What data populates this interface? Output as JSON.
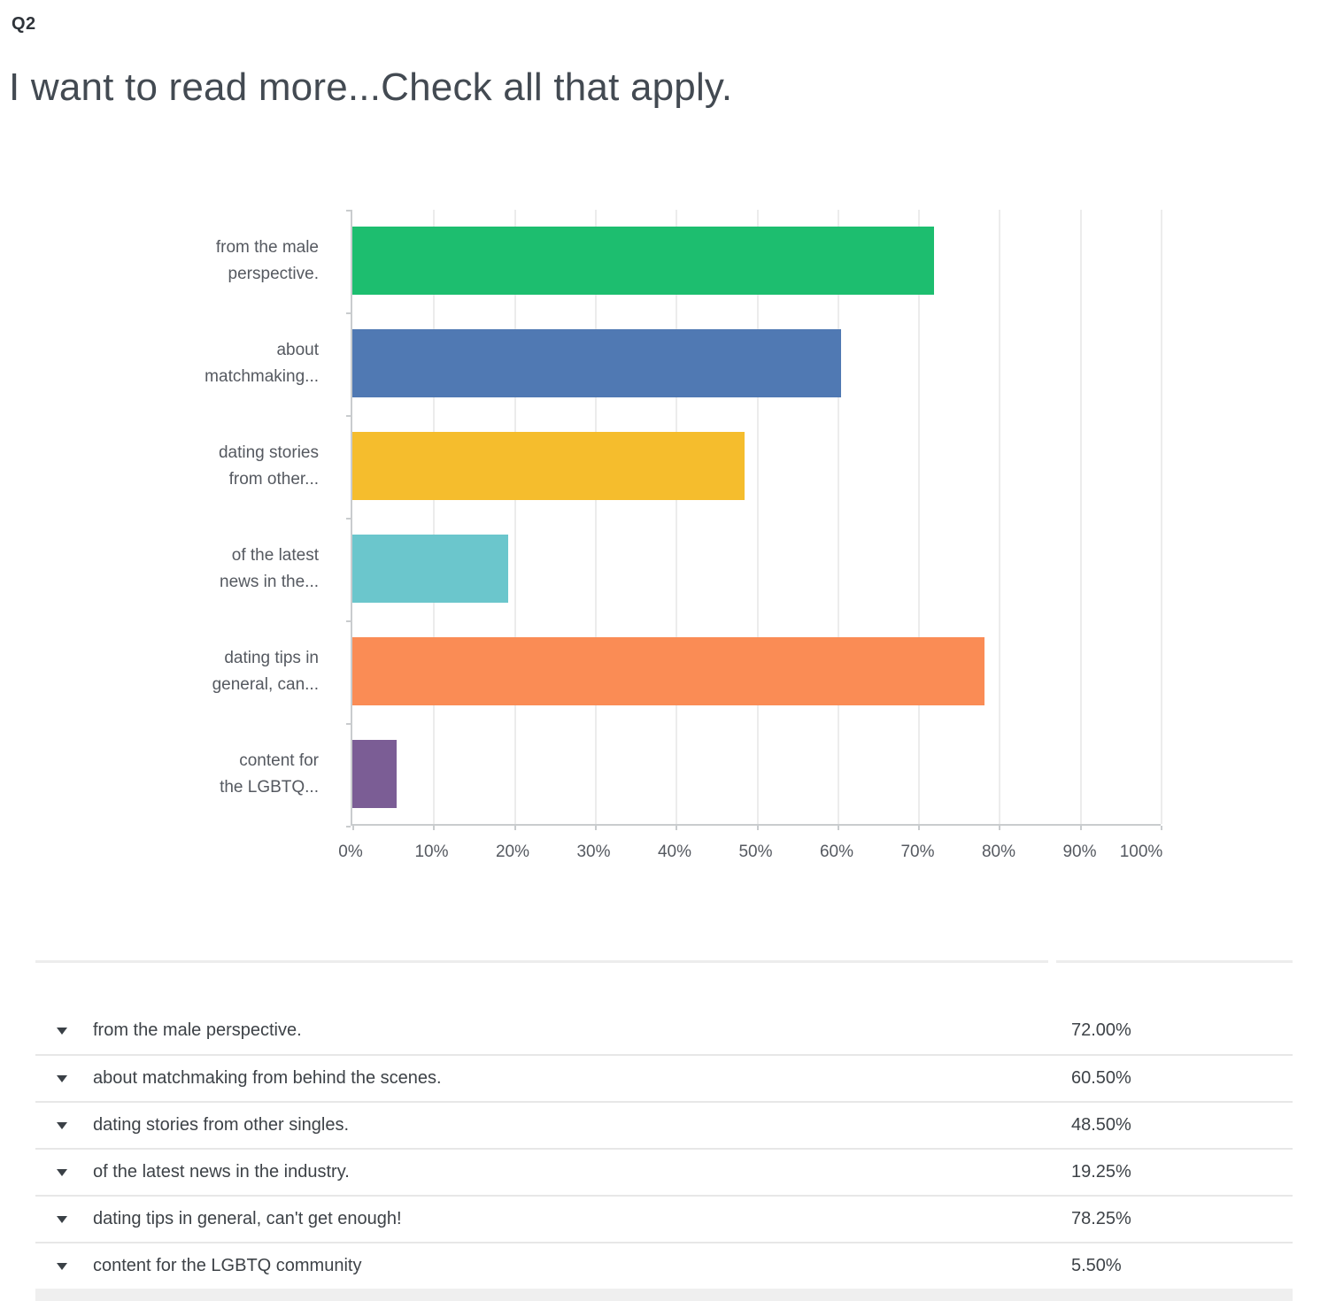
{
  "header": {
    "question_number": "Q2",
    "title": "I want to read more...Check all that apply."
  },
  "chart_data": {
    "type": "bar",
    "orientation": "horizontal",
    "title": "",
    "xlabel": "",
    "ylabel": "",
    "xlim": [
      0,
      100
    ],
    "grid": true,
    "legend": false,
    "x_tick_labels": [
      "0%",
      "10%",
      "20%",
      "30%",
      "40%",
      "50%",
      "60%",
      "70%",
      "80%",
      "90%",
      "100%"
    ],
    "categories": [
      "from the male perspective.",
      "about matchmaking from behind the scenes.",
      "dating stories from other singles.",
      "of the latest news in the industry.",
      "dating tips in general, can't get enough!",
      "content for the LGBTQ community"
    ],
    "category_axis_labels": [
      [
        "from the male",
        "perspective."
      ],
      [
        "about",
        "matchmaking..."
      ],
      [
        "dating stories",
        "from other..."
      ],
      [
        "of the latest",
        "news in the..."
      ],
      [
        "dating tips in",
        "general, can..."
      ],
      [
        "content for",
        "the LGBTQ..."
      ]
    ],
    "values": [
      72.0,
      60.5,
      48.5,
      19.25,
      78.25,
      5.5
    ],
    "bar_colors": [
      "#1DBE6F",
      "#5079B3",
      "#F5BD2D",
      "#6BC6CC",
      "#FA8C55",
      "#7B5D95"
    ]
  },
  "table": {
    "rows": [
      {
        "label": "from the male perspective.",
        "value": "72.00%"
      },
      {
        "label": "about matchmaking from behind the scenes.",
        "value": "60.50%"
      },
      {
        "label": "dating stories from other singles.",
        "value": "48.50%"
      },
      {
        "label": "of the latest news in the industry.",
        "value": "19.25%"
      },
      {
        "label": "dating tips in general, can't get enough!",
        "value": "78.25%"
      },
      {
        "label": "content for the LGBTQ community",
        "value": "5.50%"
      }
    ]
  }
}
